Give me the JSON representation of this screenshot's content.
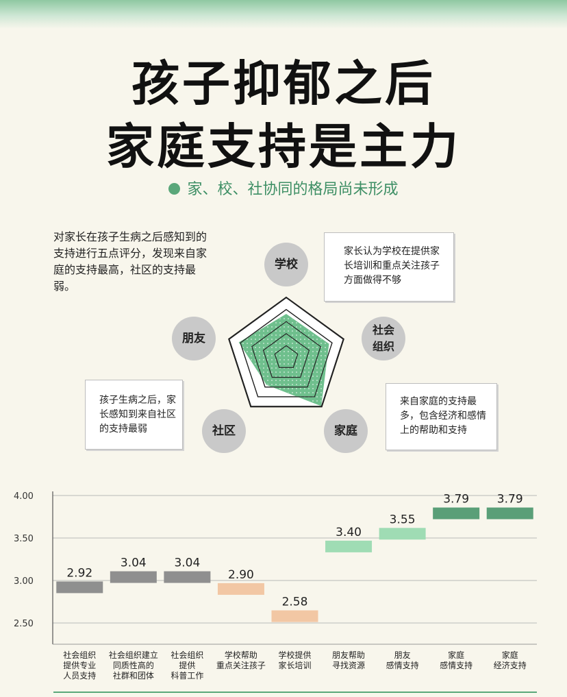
{
  "header": {
    "title_line1": "孩子抑郁之后",
    "title_line2": "家庭支持是主力",
    "subtitle": "家、校、社协同的格局尚未形成"
  },
  "description": "对家长在孩子生病之后感知到的支持进行五点评分，发现来自家庭的支持最高，社区的支持最弱。",
  "radar": {
    "nodes": {
      "school": "学校",
      "social_org": "社会组织",
      "family": "家庭",
      "community": "社区",
      "friends": "朋友"
    },
    "callouts": {
      "school": "家长认为学校在提供家长培训和重点关注孩子方面做得不够",
      "community": "孩子生病之后，家长感知到来自社区的支持最弱",
      "family": "来自家庭的支持最多，包含经济和感情上的帮助和支持"
    },
    "fill_color": "#6fbf8d"
  },
  "chart_data": {
    "type": "bar",
    "categories": [
      "社会组织提供专业人员支持",
      "社会组织建立同质性高的社群和团体",
      "社会组织提供科普工作",
      "学校帮助重点关注孩子",
      "学校提供家长培训",
      "朋友帮助寻找资源",
      "朋友感情支持",
      "家庭感情支持",
      "家庭经济支持"
    ],
    "category_lines": [
      [
        "社会组织",
        "提供专业",
        "人员支持"
      ],
      [
        "社会组织建立",
        "同质性高的",
        "社群和团体"
      ],
      [
        "社会组织",
        "提供",
        "科普工作"
      ],
      [
        "学校帮助",
        "重点关注孩子"
      ],
      [
        "学校提供",
        "家长培训"
      ],
      [
        "朋友帮助",
        "寻找资源"
      ],
      [
        "朋友",
        "感情支持"
      ],
      [
        "家庭",
        "感情支持"
      ],
      [
        "家庭",
        "经济支持"
      ]
    ],
    "values": [
      2.92,
      3.04,
      3.04,
      2.9,
      2.58,
      3.4,
      3.55,
      3.79,
      3.79
    ],
    "value_labels": [
      "2.92",
      "3.04",
      "3.04",
      "2.90",
      "2.58",
      "3.40",
      "3.55",
      "3.79",
      "3.79"
    ],
    "colors": [
      "#8f8f8f",
      "#8f8f8f",
      "#8f8f8f",
      "#f2c7a4",
      "#f2c7a4",
      "#9fdcb4",
      "#9fdcb4",
      "#5a9f78",
      "#5a9f78"
    ],
    "yticks": [
      "4.00",
      "3.50",
      "3.00",
      "2.50"
    ],
    "ylim": [
      2.25,
      4.0
    ],
    "grid": true
  }
}
